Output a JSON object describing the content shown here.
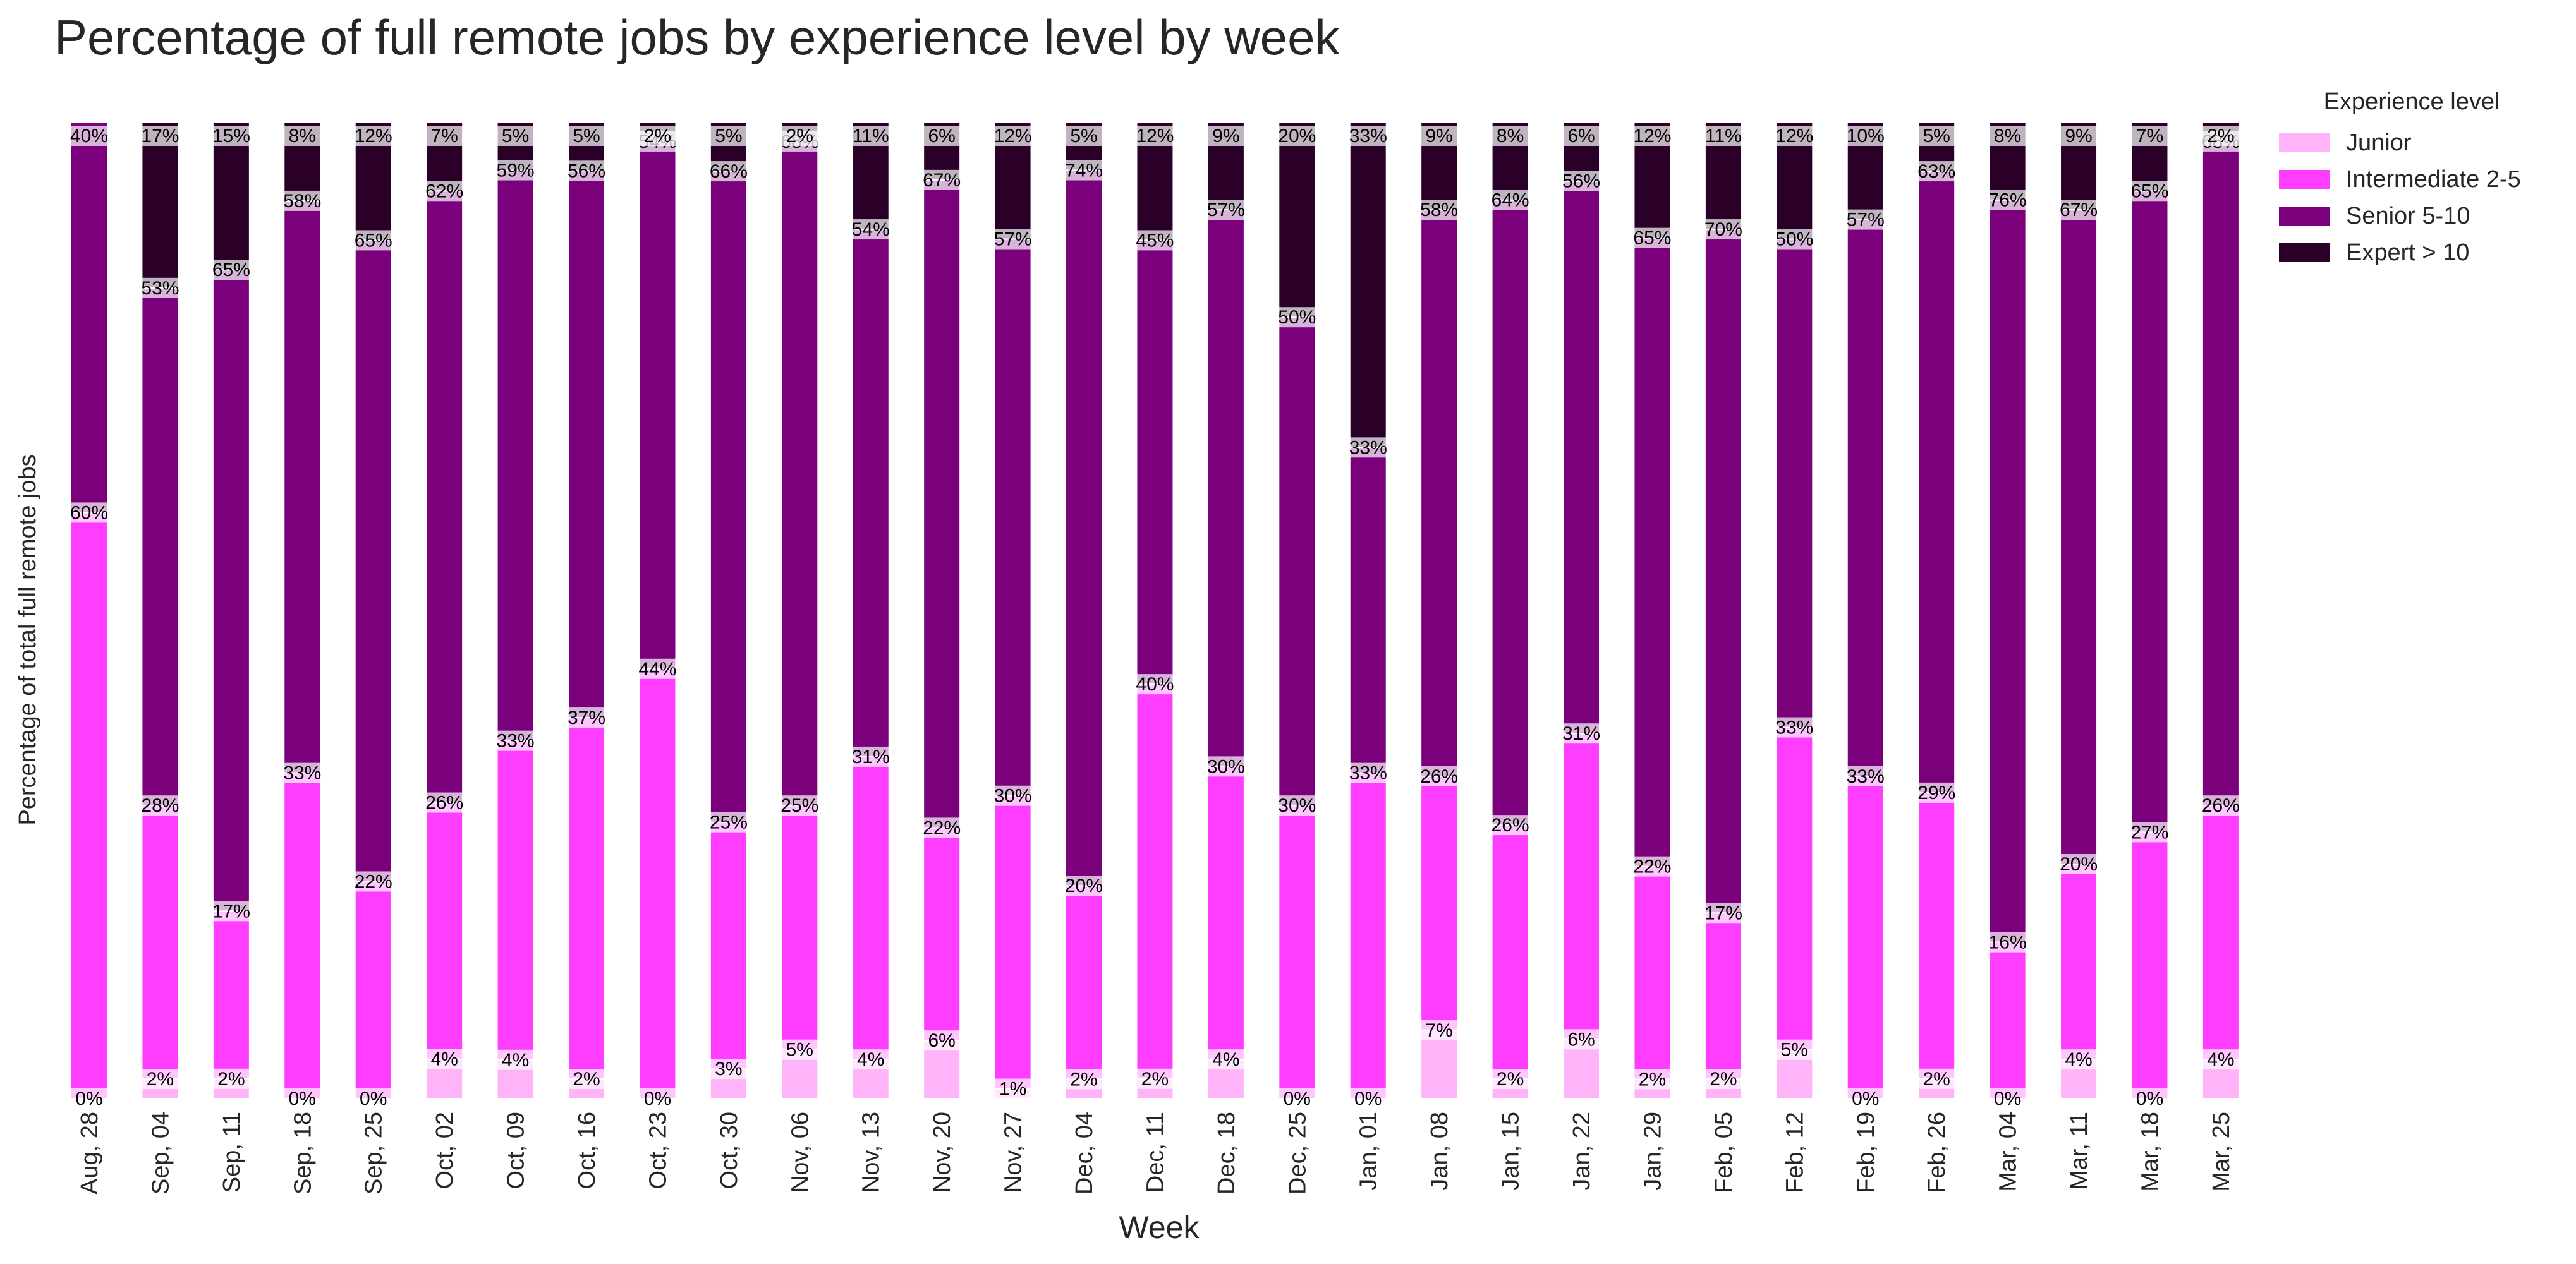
{
  "chart_data": {
    "type": "bar",
    "stacked": true,
    "normalized": true,
    "title": "Percentage of full remote jobs by experience level by week",
    "xlabel": "Week",
    "ylabel": "Percentage of total full remote jobs",
    "ylim": [
      0,
      100
    ],
    "grid": false,
    "legend_title": "Experience level",
    "legend_position": "top-right, outside plot",
    "categories": [
      "Aug, 28",
      "Sep, 04",
      "Sep, 11",
      "Sep, 18",
      "Sep, 25",
      "Oct, 02",
      "Oct, 09",
      "Oct, 16",
      "Oct, 23",
      "Oct, 30",
      "Nov, 06",
      "Nov, 13",
      "Nov, 20",
      "Nov, 27",
      "Dec, 04",
      "Dec, 11",
      "Dec, 18",
      "Dec, 25",
      "Jan, 01",
      "Jan, 08",
      "Jan, 15",
      "Jan, 22",
      "Jan, 29",
      "Feb, 05",
      "Feb, 12",
      "Feb, 19",
      "Feb, 26",
      "Mar, 04",
      "Mar, 11",
      "Mar, 18",
      "Mar, 25"
    ],
    "series": [
      {
        "name": "Junior",
        "color": "#ffb3f8",
        "values": [
          0,
          2,
          2,
          0,
          0,
          4,
          4,
          2,
          0,
          3,
          5,
          4,
          6,
          1,
          2,
          2,
          4,
          0,
          0,
          7,
          2,
          6,
          2,
          2,
          5,
          0,
          2,
          0,
          4,
          0,
          4
        ],
        "labels": [
          "0%",
          "2%",
          "2%",
          "0%",
          "0%",
          "4%",
          "4%",
          "2%",
          "0%",
          "3%",
          "5%",
          "4%",
          "6%",
          "1%",
          "2%",
          "2%",
          "4%",
          "0%",
          "0%",
          "7%",
          "2%",
          "6%",
          "2%",
          "2%",
          "5%",
          "0%",
          "2%",
          "0%",
          "4%",
          "0%",
          "4%"
        ]
      },
      {
        "name": "Intermediate 2-5",
        "color": "#ff3dff",
        "values": [
          60,
          28,
          17,
          33,
          22,
          26,
          33,
          37,
          44,
          25,
          25,
          31,
          22,
          30,
          20,
          40,
          30,
          30,
          33,
          26,
          26,
          31,
          22,
          17,
          33,
          33,
          29,
          16,
          20,
          27,
          26
        ],
        "labels": [
          "60%",
          "28%",
          "17%",
          "33%",
          "22%",
          "26%",
          "33%",
          "37%",
          "44%",
          "25%",
          "25%",
          "31%",
          "22%",
          "30%",
          "20%",
          "40%",
          "30%",
          "30%",
          "33%",
          "26%",
          "26%",
          "31%",
          "22%",
          "17%",
          "33%",
          "33%",
          "29%",
          "16%",
          "20%",
          "27%",
          "26%"
        ]
      },
      {
        "name": "Senior 5-10",
        "color": "#7b007b",
        "values": [
          40,
          53,
          65,
          58,
          65,
          62,
          59,
          56,
          54,
          66,
          68,
          54,
          67,
          57,
          74,
          45,
          57,
          50,
          33,
          58,
          64,
          56,
          65,
          70,
          50,
          57,
          63,
          76,
          67,
          65,
          68
        ],
        "labels": [
          "40%",
          "53%",
          "65%",
          "58%",
          "65%",
          "62%",
          "59%",
          "56%",
          "54%",
          "66%",
          "68%",
          "54%",
          "67%",
          "57%",
          "74%",
          "45%",
          "57%",
          "50%",
          "33%",
          "58%",
          "64%",
          "56%",
          "65%",
          "70%",
          "50%",
          "57%",
          "63%",
          "76%",
          "67%",
          "65%",
          "68%"
        ]
      },
      {
        "name": "Expert > 10",
        "color": "#2a0028",
        "values": [
          0,
          17,
          15,
          8,
          12,
          7,
          5,
          5,
          2,
          5,
          2,
          11,
          6,
          12,
          5,
          12,
          9,
          20,
          33,
          9,
          8,
          6,
          12,
          11,
          12,
          10,
          5,
          8,
          9,
          7,
          2
        ],
        "labels": [
          "",
          "17%",
          "15%",
          "8%",
          "12%",
          "7%",
          "5%",
          "5%",
          "2%",
          "5%",
          "2%",
          "11%",
          "6%",
          "12%",
          "5%",
          "12%",
          "9%",
          "20%",
          "33%",
          "9%",
          "8%",
          "6%",
          "12%",
          "11%",
          "12%",
          "10%",
          "5%",
          "8%",
          "9%",
          "7%",
          "2%"
        ]
      }
    ]
  }
}
